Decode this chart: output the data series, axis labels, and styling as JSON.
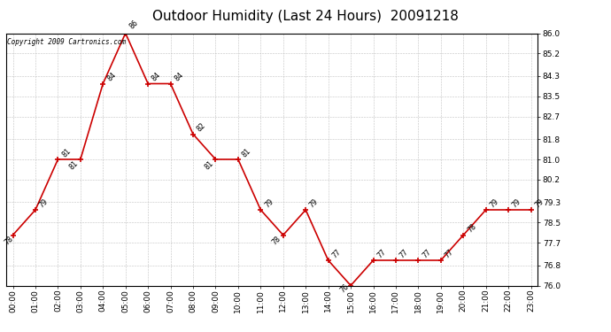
{
  "title": "Outdoor Humidity (Last 24 Hours)  20091218",
  "copyright_text": "Copyright 2009 Cartronics.com",
  "hours": [
    0,
    1,
    2,
    3,
    4,
    5,
    6,
    7,
    8,
    9,
    10,
    11,
    12,
    13,
    14,
    15,
    16,
    17,
    18,
    19,
    20,
    21,
    22,
    23
  ],
  "x_labels": [
    "00:00",
    "01:00",
    "02:00",
    "03:00",
    "04:00",
    "05:00",
    "06:00",
    "07:00",
    "08:00",
    "09:00",
    "10:00",
    "11:00",
    "12:00",
    "13:00",
    "14:00",
    "15:00",
    "16:00",
    "17:00",
    "18:00",
    "19:00",
    "20:00",
    "21:00",
    "22:00",
    "23:00"
  ],
  "values": [
    78,
    79,
    81,
    81,
    84,
    86,
    84,
    84,
    82,
    81,
    81,
    79,
    78,
    79,
    77,
    76,
    77,
    77,
    77,
    77,
    78,
    79,
    79,
    79
  ],
  "ylim": [
    76.0,
    86.0
  ],
  "yticks": [
    76.0,
    76.8,
    77.7,
    78.5,
    79.3,
    80.2,
    81.0,
    81.8,
    82.7,
    83.5,
    84.3,
    85.2,
    86.0
  ],
  "line_color": "#cc0000",
  "marker_color": "#cc0000",
  "bg_color": "#ffffff",
  "grid_color": "#bbbbbb",
  "title_fontsize": 11,
  "tick_fontsize": 6.5,
  "annot_fontsize": 6,
  "copyright_fontsize": 5.5
}
